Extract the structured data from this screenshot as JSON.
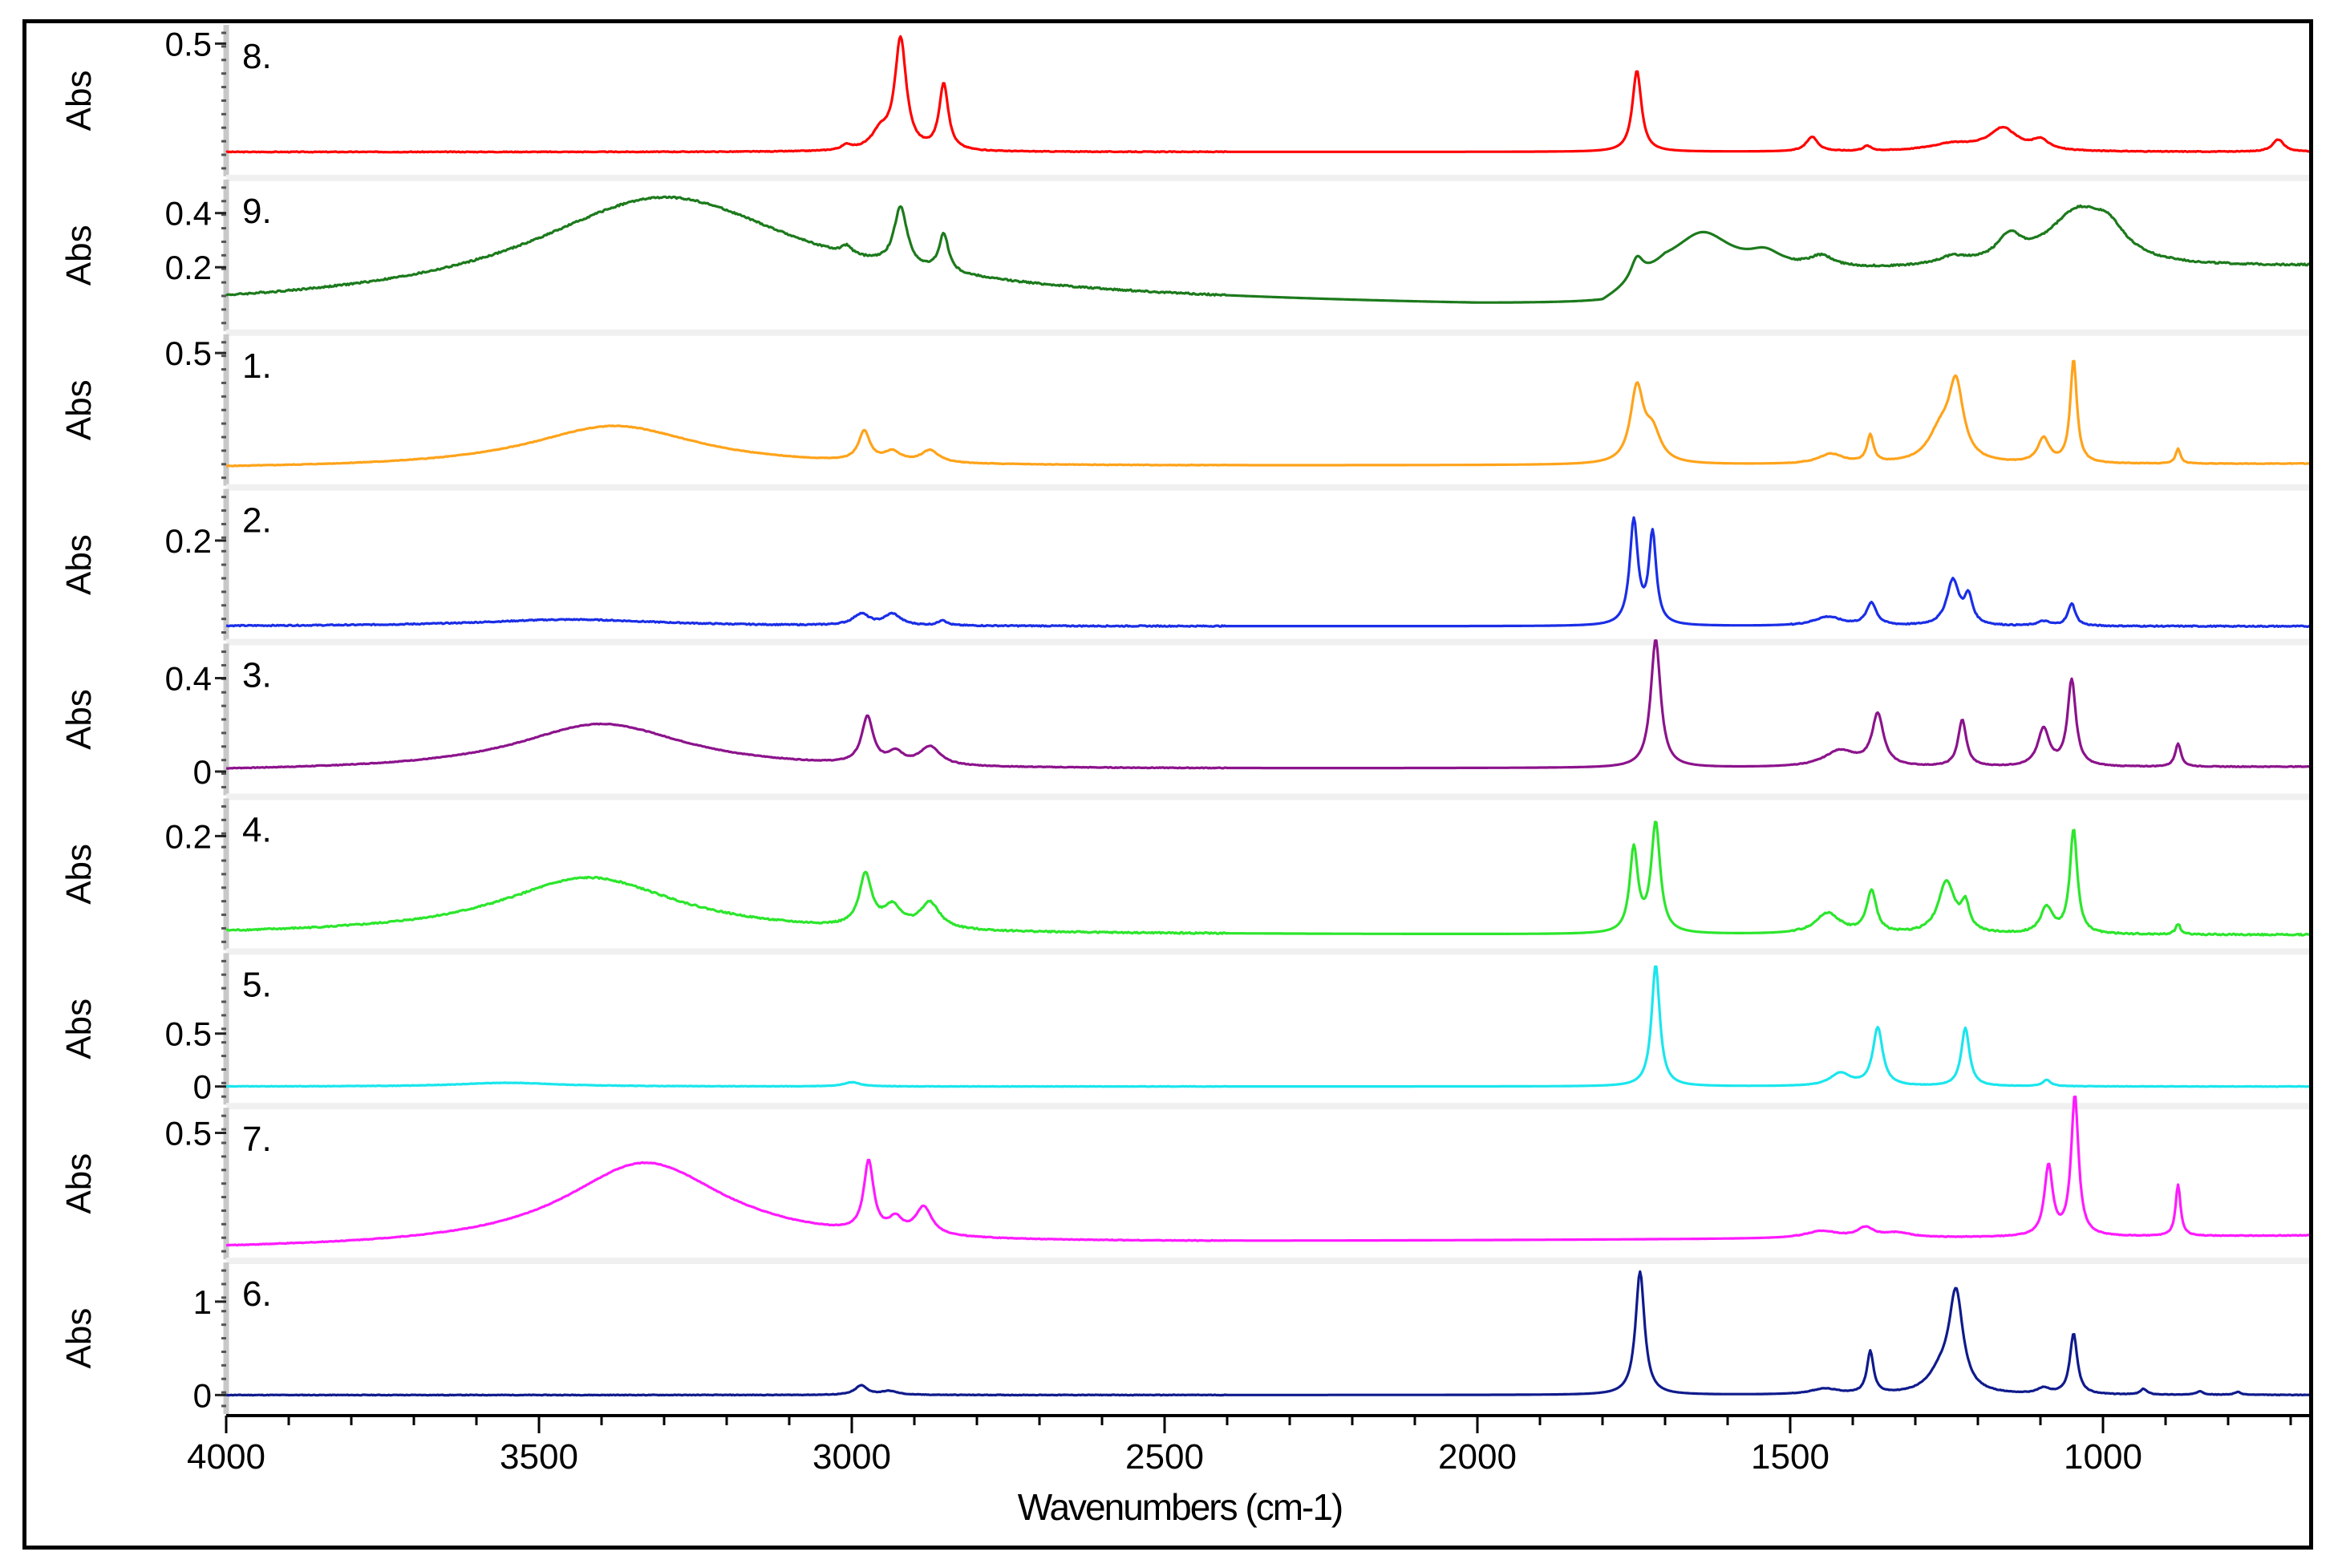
{
  "chart_data": {
    "type": "line",
    "title": "",
    "xlabel": "Wavenumbers (cm-1)",
    "ylabel": "Abs",
    "xlim": [
      4000,
      650
    ],
    "x_ticks": [
      4000,
      3500,
      3000,
      2500,
      2000,
      1500,
      1000
    ],
    "series": [
      {
        "name": "8.",
        "label": "8.",
        "color": "#ff0000",
        "ylim": [
          0.0,
          0.55
        ],
        "yticks": [
          0.5
        ],
        "baseline": 0.06,
        "noise": 0.0015,
        "slope": [
          [
            4000,
            0
          ],
          [
            650,
            0
          ]
        ],
        "bands": [
          [
            3008,
            0.02,
            12
          ],
          [
            2954,
            0.07,
            22
          ],
          [
            2922,
            0.45,
            14
          ],
          [
            2853,
            0.27,
            11
          ],
          [
            1745,
            0.33,
            11
          ],
          [
            1465,
            0.06,
            14
          ],
          [
            1377,
            0.02,
            10
          ],
          [
            1240,
            0.03,
            60
          ],
          [
            1160,
            0.09,
            35
          ],
          [
            1100,
            0.04,
            20
          ],
          [
            720,
            0.05,
            14
          ]
        ]
      },
      {
        "name": "9.",
        "label": "9.",
        "color": "#1c7a1c",
        "ylim": [
          0.0,
          0.5
        ],
        "yticks": [
          0.4,
          0.2
        ],
        "baseline": 0.05,
        "noise": 0.003,
        "slope": [
          [
            4000,
            0
          ],
          [
            2800,
            0.03
          ],
          [
            2000,
            0
          ],
          [
            1800,
            0
          ],
          [
            1700,
            0.12
          ],
          [
            650,
            0.15
          ]
        ],
        "bands": [
          [
            3300,
            0.39,
            330
          ],
          [
            3008,
            0.03,
            12
          ],
          [
            2922,
            0.22,
            16
          ],
          [
            2853,
            0.14,
            12
          ],
          [
            1745,
            0.08,
            15
          ],
          [
            1640,
            0.14,
            70
          ],
          [
            1540,
            0.05,
            40
          ],
          [
            1450,
            0.04,
            30
          ],
          [
            1240,
            0.03,
            40
          ],
          [
            1150,
            0.09,
            30
          ],
          [
            1040,
            0.2,
            75
          ],
          [
            990,
            0.08,
            40
          ]
        ]
      },
      {
        "name": "1.",
        "label": "1.",
        "color": "#ffa31a",
        "ylim": [
          0.0,
          0.55
        ],
        "yticks": [
          0.5
        ],
        "baseline": 0.03,
        "noise": 0.0012,
        "slope": [
          [
            4000,
            0
          ],
          [
            650,
            0.02
          ]
        ],
        "bands": [
          [
            3380,
            0.17,
            210
          ],
          [
            2980,
            0.12,
            14
          ],
          [
            2935,
            0.04,
            20
          ],
          [
            2875,
            0.05,
            22
          ],
          [
            1745,
            0.3,
            16
          ],
          [
            1720,
            0.12,
            20
          ],
          [
            1435,
            0.04,
            30
          ],
          [
            1372,
            0.11,
            8
          ],
          [
            1260,
            0.12,
            30
          ],
          [
            1235,
            0.3,
            18
          ],
          [
            1095,
            0.1,
            14
          ],
          [
            1047,
            0.42,
            8
          ],
          [
            880,
            0.06,
            6
          ]
        ]
      },
      {
        "name": "2.",
        "label": "2.",
        "color": "#1a2ee6",
        "ylim": [
          0.0,
          0.3
        ],
        "yticks": [
          0.2
        ],
        "baseline": 0.01,
        "noise": 0.0012,
        "slope": [
          [
            4000,
            0
          ],
          [
            650,
            0
          ]
        ],
        "bands": [
          [
            3450,
            0.015,
            230
          ],
          [
            2985,
            0.025,
            20
          ],
          [
            2935,
            0.025,
            20
          ],
          [
            2855,
            0.012,
            10
          ],
          [
            1750,
            0.23,
            10
          ],
          [
            1720,
            0.2,
            9
          ],
          [
            1440,
            0.02,
            35
          ],
          [
            1370,
            0.05,
            12
          ],
          [
            1240,
            0.1,
            15
          ],
          [
            1215,
            0.06,
            10
          ],
          [
            1095,
            0.01,
            15
          ],
          [
            1050,
            0.05,
            9
          ]
        ]
      },
      {
        "name": "3.",
        "label": "3.",
        "color": "#8c138c",
        "ylim": [
          -0.06,
          0.52
        ],
        "yticks": [
          0.4,
          0.0
        ],
        "baseline": 0.0,
        "noise": 0.0015,
        "slope": [
          [
            4000,
            0
          ],
          [
            650,
            0.02
          ]
        ],
        "bands": [
          [
            3400,
            0.2,
            210
          ],
          [
            2975,
            0.2,
            14
          ],
          [
            2930,
            0.05,
            18
          ],
          [
            2875,
            0.08,
            25
          ],
          [
            1715,
            0.55,
            12
          ],
          [
            1420,
            0.07,
            40
          ],
          [
            1360,
            0.22,
            14
          ],
          [
            1225,
            0.2,
            10
          ],
          [
            1095,
            0.16,
            14
          ],
          [
            1050,
            0.37,
            10
          ],
          [
            880,
            0.1,
            7
          ]
        ]
      },
      {
        "name": "4.",
        "label": "4.",
        "color": "#2ce62c",
        "ylim": [
          0.0,
          0.26
        ],
        "yticks": [
          0.2
        ],
        "baseline": 0.01,
        "noise": 0.0014,
        "slope": [
          [
            4000,
            0
          ],
          [
            650,
            0
          ]
        ],
        "bands": [
          [
            3420,
            0.11,
            220
          ],
          [
            2978,
            0.1,
            15
          ],
          [
            2935,
            0.04,
            22
          ],
          [
            2875,
            0.05,
            24
          ],
          [
            1750,
            0.16,
            10
          ],
          [
            1715,
            0.21,
            11
          ],
          [
            1440,
            0.04,
            30
          ],
          [
            1370,
            0.08,
            12
          ],
          [
            1250,
            0.1,
            20
          ],
          [
            1220,
            0.05,
            10
          ],
          [
            1090,
            0.05,
            15
          ],
          [
            1047,
            0.2,
            9
          ],
          [
            880,
            0.02,
            6
          ]
        ]
      },
      {
        "name": "5.",
        "label": "5.",
        "color": "#1ae6ed",
        "ylim": [
          -0.08,
          1.2
        ],
        "yticks": [
          0.5,
          0.0
        ],
        "baseline": 0.0,
        "noise": 0.002,
        "slope": [
          [
            4000,
            0
          ],
          [
            650,
            0
          ]
        ],
        "bands": [
          [
            3550,
            0.035,
            120
          ],
          [
            3000,
            0.04,
            20
          ],
          [
            1715,
            1.15,
            10
          ],
          [
            1420,
            0.12,
            25
          ],
          [
            1360,
            0.55,
            12
          ],
          [
            1220,
            0.55,
            10
          ],
          [
            1090,
            0.06,
            10
          ]
        ]
      },
      {
        "name": "7.",
        "label": "7.",
        "color": "#ff1aff",
        "ylim": [
          0.0,
          0.58
        ],
        "yticks": [
          0.5
        ],
        "baseline": 0.0,
        "noise": 0.0014,
        "slope": [
          [
            4000,
            0
          ],
          [
            650,
            0.06
          ]
        ],
        "bands": [
          [
            3330,
            0.36,
            200
          ],
          [
            2973,
            0.3,
            12
          ],
          [
            2930,
            0.06,
            16
          ],
          [
            2885,
            0.12,
            20
          ],
          [
            1450,
            0.03,
            40
          ],
          [
            1380,
            0.04,
            20
          ],
          [
            1330,
            0.02,
            35
          ],
          [
            1087,
            0.3,
            10
          ],
          [
            1045,
            0.6,
            9
          ],
          [
            880,
            0.22,
            6
          ]
        ]
      },
      {
        "name": "6.",
        "label": "6.",
        "color": "#0f1a8c",
        "ylim": [
          -0.1,
          1.35
        ],
        "yticks": [
          1,
          0
        ],
        "baseline": 0.0,
        "noise": 0.003,
        "slope": [
          [
            4000,
            0
          ],
          [
            650,
            0
          ]
        ],
        "bands": [
          [
            2985,
            0.1,
            15
          ],
          [
            2940,
            0.04,
            20
          ],
          [
            1740,
            1.32,
            11
          ],
          [
            1445,
            0.06,
            35
          ],
          [
            1372,
            0.45,
            8
          ],
          [
            1260,
            0.2,
            30
          ],
          [
            1235,
            1.05,
            17
          ],
          [
            1095,
            0.06,
            15
          ],
          [
            1047,
            0.65,
            9
          ],
          [
            935,
            0.06,
            8
          ],
          [
            845,
            0.04,
            8
          ],
          [
            785,
            0.03,
            8
          ]
        ]
      }
    ]
  }
}
